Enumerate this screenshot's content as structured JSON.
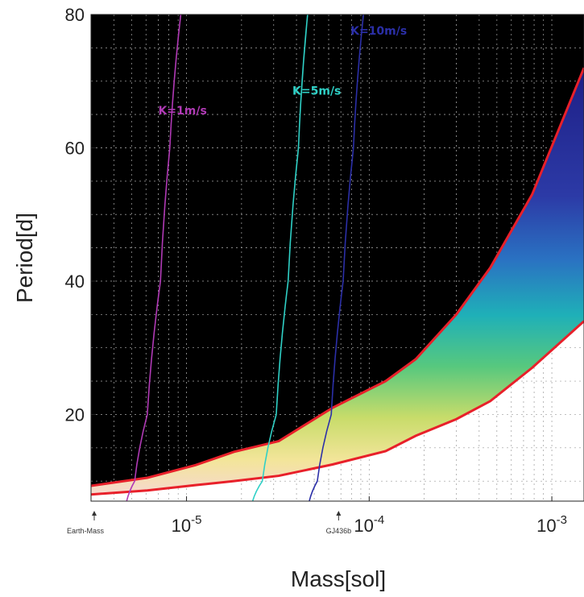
{
  "chart_data": {
    "type": "area",
    "title": "",
    "xlabel": "Mass[sol]",
    "ylabel": "Period[d]",
    "xscale": "log",
    "xlim": [
      3e-06,
      0.0015
    ],
    "ylim": [
      7,
      80
    ],
    "grid": true,
    "background": "#000000",
    "y_ticks": [
      {
        "value": 20,
        "label": "20"
      },
      {
        "value": 40,
        "label": "40"
      },
      {
        "value": 60,
        "label": "60"
      },
      {
        "value": 80,
        "label": "80"
      }
    ],
    "x_ticks": [
      {
        "value": 1e-05,
        "base": "10",
        "exp": "-5"
      },
      {
        "value": 0.0001,
        "base": "10",
        "exp": "-4"
      },
      {
        "value": 0.001,
        "base": "10",
        "exp": "-3"
      }
    ],
    "markers": [
      {
        "label": "Earth-Mass",
        "x": 3e-06
      },
      {
        "label": "GJ436b",
        "x": 6.8e-05
      }
    ],
    "region": {
      "upper_boundary": {
        "x": [
          3e-06,
          6.1e-06,
          1.12e-05,
          1.82e-05,
          3.2e-05,
          6.3e-05,
          0.000123,
          0.00018,
          0.0003,
          0.00046,
          0.00078,
          0.0015
        ],
        "y": [
          9.3,
          10.5,
          12.4,
          14.4,
          16.0,
          21.0,
          25.0,
          28.3,
          35.0,
          42.0,
          53.0,
          72.0
        ]
      },
      "lower_boundary": {
        "x": [
          3e-06,
          6.1e-06,
          1.12e-05,
          1.82e-05,
          3.2e-05,
          6.3e-05,
          0.000123,
          0.00018,
          0.0003,
          0.00046,
          0.00078,
          0.0015
        ],
        "y": [
          8.0,
          8.6,
          9.4,
          10.0,
          10.8,
          12.5,
          14.5,
          16.8,
          19.3,
          22.0,
          27.0,
          34.0
        ]
      },
      "border_color": "#e8202a"
    },
    "series": [
      {
        "name": "K=1m/s",
        "color": "#b13ab6",
        "x": [
          4.7e-06,
          5.2e-06,
          6.1e-06,
          7.2e-06,
          8.1e-06,
          9.3e-06
        ],
        "y": [
          7.0,
          10.0,
          20.0,
          40.0,
          60.0,
          80.0
        ]
      },
      {
        "name": "K=5m/s",
        "color": "#2fd0c6",
        "x": [
          2.3e-05,
          2.6e-05,
          3.1e-05,
          3.6e-05,
          4.1e-05,
          4.6e-05
        ],
        "y": [
          7.0,
          10.0,
          20.0,
          40.0,
          60.0,
          80.0
        ]
      },
      {
        "name": "K=10m/s",
        "color": "#2b2fa8",
        "x": [
          4.7e-05,
          5.2e-05,
          6.2e-05,
          7.2e-05,
          8.2e-05,
          9.3e-05
        ],
        "y": [
          7.0,
          10.0,
          20.0,
          40.0,
          60.0,
          80.0
        ]
      }
    ],
    "series_label_positions": [
      {
        "x": 7e-06,
        "y": 65
      },
      {
        "x": 3.8e-05,
        "y": 68
      },
      {
        "x": 7.9e-05,
        "y": 77
      }
    ]
  }
}
